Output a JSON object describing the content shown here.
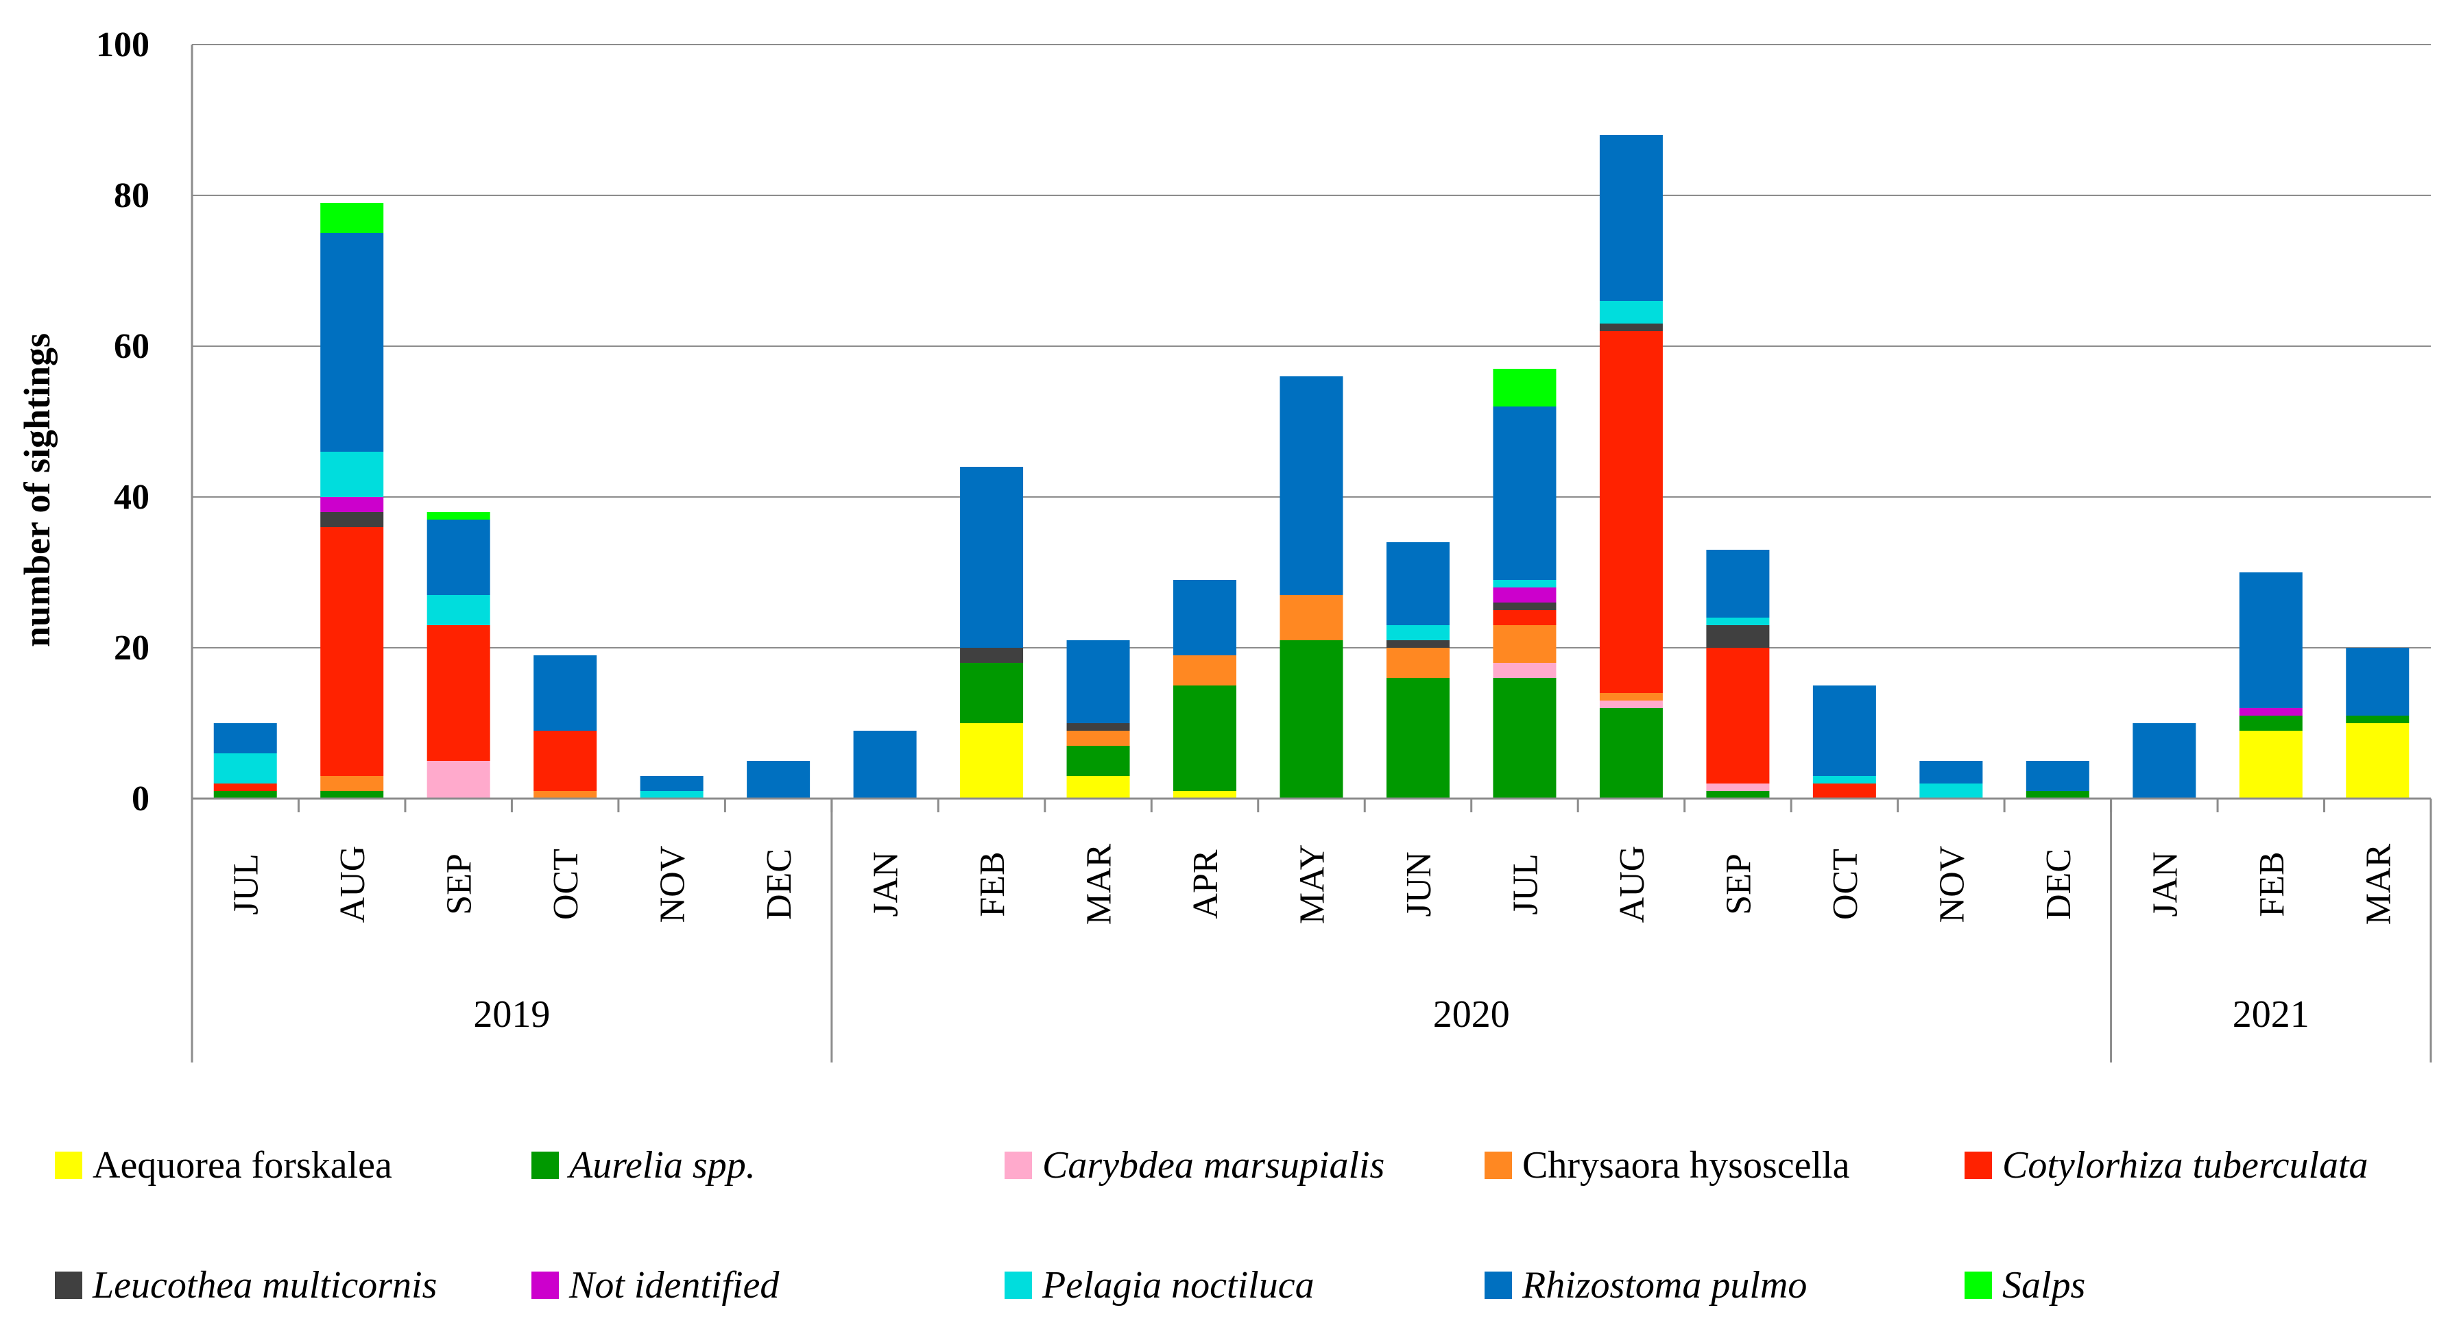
{
  "chart_data": {
    "type": "bar",
    "stacked": true,
    "title": "",
    "xlabel": "",
    "ylabel": "number of sightings",
    "ylim": [
      0,
      100
    ],
    "yticks": [
      0,
      20,
      40,
      60,
      80,
      100
    ],
    "grid": true,
    "legend_position": "bottom",
    "categories": [
      "JUL",
      "AUG",
      "SEP",
      "OCT",
      "NOV",
      "DEC",
      "JAN",
      "FEB",
      "MAR",
      "APR",
      "MAY",
      "JUN",
      "JUL",
      "AUG",
      "SEP",
      "OCT",
      "NOV",
      "DEC",
      "JAN",
      "FEB",
      "MAR"
    ],
    "year_groups": [
      {
        "label": "2019",
        "start": 0,
        "end": 5
      },
      {
        "label": "2020",
        "start": 6,
        "end": 17
      },
      {
        "label": "2021",
        "start": 18,
        "end": 20
      }
    ],
    "series": [
      {
        "name": "Aequorea forskalea",
        "italic": false,
        "color": "#FFFF00",
        "values": [
          0,
          0,
          0,
          0,
          0,
          0,
          0,
          10,
          3,
          1,
          0,
          0,
          0,
          0,
          0,
          0,
          0,
          0,
          0,
          9,
          10
        ]
      },
      {
        "name": "Aurelia spp.",
        "italic": true,
        "color": "#009900",
        "values": [
          1,
          1,
          0,
          0,
          0,
          0,
          0,
          8,
          4,
          14,
          21,
          16,
          16,
          12,
          1,
          0,
          0,
          1,
          0,
          2,
          1
        ]
      },
      {
        "name": "Carybdea marsupialis",
        "italic": true,
        "color": "#FFAACC",
        "values": [
          0,
          0,
          5,
          0,
          0,
          0,
          0,
          0,
          0,
          0,
          0,
          0,
          2,
          1,
          1,
          0,
          0,
          0,
          0,
          0,
          0
        ]
      },
      {
        "name": "Chrysaora hysoscella",
        "italic": false,
        "color": "#FF8822",
        "values": [
          0,
          2,
          0,
          1,
          0,
          0,
          0,
          0,
          2,
          4,
          6,
          4,
          5,
          1,
          0,
          0,
          0,
          0,
          0,
          0,
          0
        ]
      },
      {
        "name": "Cotylorhiza tuberculata",
        "italic": true,
        "color": "#FF2200",
        "values": [
          1,
          33,
          18,
          8,
          0,
          0,
          0,
          0,
          0,
          0,
          0,
          0,
          2,
          48,
          18,
          2,
          0,
          0,
          0,
          0,
          0
        ]
      },
      {
        "name": "Leucothea multicornis",
        "italic": true,
        "color": "#404040",
        "values": [
          0,
          2,
          0,
          0,
          0,
          0,
          0,
          2,
          1,
          0,
          0,
          1,
          1,
          1,
          3,
          0,
          0,
          0,
          0,
          0,
          0
        ]
      },
      {
        "name": "Not identified",
        "italic": true,
        "color": "#CC00CC",
        "values": [
          0,
          2,
          0,
          0,
          0,
          0,
          0,
          0,
          0,
          0,
          0,
          0,
          2,
          0,
          0,
          0,
          0,
          0,
          0,
          1,
          0
        ]
      },
      {
        "name": "Pelagia noctiluca",
        "italic": true,
        "color": "#00DDDD",
        "values": [
          4,
          6,
          4,
          0,
          1,
          0,
          0,
          0,
          0,
          0,
          0,
          2,
          1,
          3,
          1,
          1,
          2,
          0,
          0,
          0,
          0
        ]
      },
      {
        "name": "Rhizostoma pulmo",
        "italic": true,
        "color": "#0070C0",
        "values": [
          4,
          29,
          10,
          10,
          2,
          5,
          9,
          24,
          11,
          10,
          29,
          11,
          23,
          22,
          9,
          12,
          3,
          4,
          10,
          18,
          9
        ]
      },
      {
        "name": "Salps",
        "italic": true,
        "color": "#00FF00",
        "values": [
          0,
          4,
          1,
          0,
          0,
          0,
          0,
          0,
          0,
          0,
          0,
          0,
          5,
          0,
          0,
          0,
          0,
          0,
          0,
          0,
          0
        ]
      }
    ]
  }
}
